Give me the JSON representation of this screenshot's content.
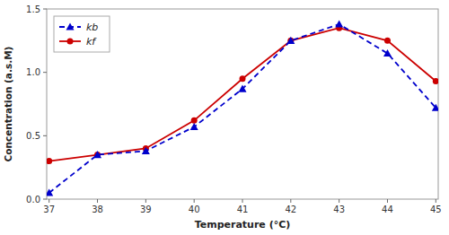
{
  "chart_data": {
    "type": "line",
    "xlabel": "Temperature (°C)",
    "ylabel": "Concentration (a.s.M)",
    "x": [
      37,
      38,
      39,
      40,
      41,
      42,
      43,
      44,
      45
    ],
    "series": [
      {
        "name": "kf",
        "color": "#CC0000",
        "marker": "circle",
        "line_style": "solid",
        "values": [
          0.3,
          0.35,
          0.4,
          0.62,
          0.95,
          1.25,
          1.35,
          1.25,
          0.93
        ]
      },
      {
        "name": "kb",
        "color": "#0000CC",
        "marker": "triangle",
        "line_style": "dashed",
        "values": [
          0.05,
          0.35,
          0.38,
          0.57,
          0.87,
          1.25,
          1.38,
          1.15,
          0.72
        ]
      }
    ],
    "xlim": [
      36.95,
      45.05
    ],
    "ylim": [
      0,
      1.5
    ],
    "xticks": [
      37,
      38,
      39,
      40,
      41,
      42,
      43,
      44,
      45
    ],
    "yticks": [
      {
        "value": 0,
        "label": "0.0"
      },
      0.5,
      {
        "value": 1.0,
        "label": "1.0"
      },
      1.5
    ],
    "grid": false,
    "legend": "upper left"
  }
}
